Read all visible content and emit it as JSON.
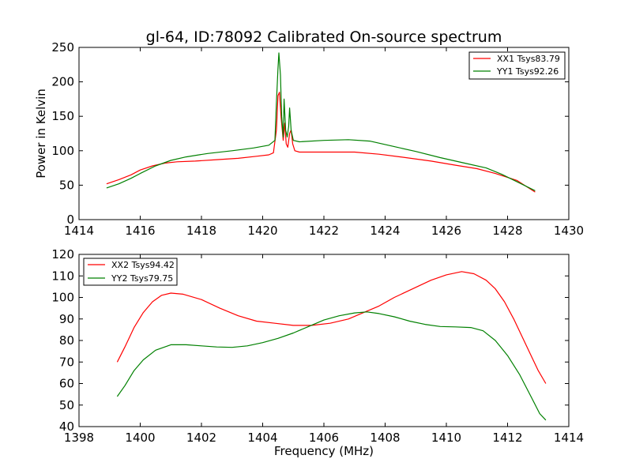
{
  "chart_data": [
    {
      "type": "line",
      "title": "gl-64, ID:78092 Calibrated On-source spectrum",
      "xlabel": "",
      "ylabel": "Power in Kelvin",
      "xlim": [
        1414,
        1430
      ],
      "ylim": [
        0,
        250
      ],
      "xticks": [
        "1414",
        "1416",
        "1418",
        "1420",
        "1422",
        "1424",
        "1426",
        "1428",
        "1430"
      ],
      "yticks": [
        "0",
        "50",
        "100",
        "150",
        "200",
        "250"
      ],
      "legend": "top-right",
      "grid": false,
      "series": [
        {
          "name": "XX1 Tsys83.79",
          "color": "#ff0000",
          "points": [
            [
              1414.9,
              52
            ],
            [
              1415.3,
              58
            ],
            [
              1415.7,
              65
            ],
            [
              1416.0,
              72
            ],
            [
              1416.4,
              78
            ],
            [
              1416.8,
              82
            ],
            [
              1417.2,
              84
            ],
            [
              1417.8,
              85
            ],
            [
              1418.5,
              87
            ],
            [
              1419.2,
              89
            ],
            [
              1419.8,
              92
            ],
            [
              1420.2,
              94
            ],
            [
              1420.35,
              97
            ],
            [
              1420.45,
              130
            ],
            [
              1420.5,
              180
            ],
            [
              1420.55,
              185
            ],
            [
              1420.6,
              150
            ],
            [
              1420.67,
              115
            ],
            [
              1420.72,
              140
            ],
            [
              1420.77,
              110
            ],
            [
              1420.82,
              105
            ],
            [
              1420.88,
              125
            ],
            [
              1420.93,
              130
            ],
            [
              1420.98,
              110
            ],
            [
              1421.05,
              100
            ],
            [
              1421.2,
              98
            ],
            [
              1422.0,
              98
            ],
            [
              1423.0,
              98
            ],
            [
              1423.8,
              95
            ],
            [
              1424.5,
              91
            ],
            [
              1425.5,
              85
            ],
            [
              1426.3,
              79
            ],
            [
              1427.0,
              74
            ],
            [
              1427.6,
              67
            ],
            [
              1428.3,
              57
            ],
            [
              1428.9,
              40
            ]
          ]
        },
        {
          "name": "YY1 Tsys92.26",
          "color": "#008000",
          "points": [
            [
              1414.9,
              46
            ],
            [
              1415.3,
              52
            ],
            [
              1415.7,
              60
            ],
            [
              1416.0,
              67
            ],
            [
              1416.5,
              78
            ],
            [
              1417.0,
              86
            ],
            [
              1417.5,
              91
            ],
            [
              1418.2,
              96
            ],
            [
              1419.0,
              100
            ],
            [
              1419.7,
              104
            ],
            [
              1420.2,
              108
            ],
            [
              1420.4,
              115
            ],
            [
              1420.45,
              170
            ],
            [
              1420.5,
              220
            ],
            [
              1420.53,
              242
            ],
            [
              1420.58,
              210
            ],
            [
              1420.62,
              150
            ],
            [
              1420.67,
              120
            ],
            [
              1420.7,
              175
            ],
            [
              1420.75,
              130
            ],
            [
              1420.8,
              120
            ],
            [
              1420.85,
              135
            ],
            [
              1420.88,
              162
            ],
            [
              1420.93,
              130
            ],
            [
              1421.0,
              115
            ],
            [
              1421.2,
              113
            ],
            [
              1422.0,
              115
            ],
            [
              1422.8,
              116
            ],
            [
              1423.5,
              114
            ],
            [
              1424.3,
              106
            ],
            [
              1425.0,
              99
            ],
            [
              1425.8,
              90
            ],
            [
              1426.6,
              82
            ],
            [
              1427.3,
              75
            ],
            [
              1427.8,
              66
            ],
            [
              1428.4,
              53
            ],
            [
              1428.9,
              42
            ]
          ]
        }
      ]
    },
    {
      "type": "line",
      "title": "",
      "xlabel": "Frequency (MHz)",
      "ylabel": "",
      "xlim": [
        1398,
        1414
      ],
      "ylim": [
        40,
        120
      ],
      "xticks": [
        "1398",
        "1400",
        "1402",
        "1404",
        "1406",
        "1408",
        "1410",
        "1412",
        "1414"
      ],
      "yticks": [
        "40",
        "50",
        "60",
        "70",
        "80",
        "90",
        "100",
        "110",
        "120"
      ],
      "legend": "top-left",
      "grid": false,
      "series": [
        {
          "name": "XX2 Tsys94.42",
          "color": "#ff0000",
          "points": [
            [
              1399.25,
              70
            ],
            [
              1399.5,
              77
            ],
            [
              1399.8,
              86
            ],
            [
              1400.1,
              93
            ],
            [
              1400.4,
              98
            ],
            [
              1400.7,
              101
            ],
            [
              1401.0,
              102
            ],
            [
              1401.4,
              101.5
            ],
            [
              1402.0,
              99
            ],
            [
              1402.6,
              95
            ],
            [
              1403.2,
              91.5
            ],
            [
              1403.8,
              89
            ],
            [
              1404.4,
              88
            ],
            [
              1405.0,
              87
            ],
            [
              1405.6,
              87
            ],
            [
              1406.2,
              88
            ],
            [
              1406.8,
              90
            ],
            [
              1407.3,
              93
            ],
            [
              1407.8,
              96
            ],
            [
              1408.3,
              100
            ],
            [
              1408.9,
              104
            ],
            [
              1409.5,
              108
            ],
            [
              1410.0,
              110.5
            ],
            [
              1410.5,
              112
            ],
            [
              1410.9,
              111
            ],
            [
              1411.3,
              108
            ],
            [
              1411.6,
              104
            ],
            [
              1411.9,
              98
            ],
            [
              1412.2,
              90
            ],
            [
              1412.5,
              81
            ],
            [
              1412.8,
              72
            ],
            [
              1413.0,
              66
            ],
            [
              1413.25,
              60
            ]
          ]
        },
        {
          "name": "YY2 Tsys79.75",
          "color": "#008000",
          "points": [
            [
              1399.25,
              54
            ],
            [
              1399.5,
              59
            ],
            [
              1399.8,
              66
            ],
            [
              1400.1,
              71
            ],
            [
              1400.5,
              75.5
            ],
            [
              1401.0,
              78
            ],
            [
              1401.5,
              78
            ],
            [
              1402.0,
              77.5
            ],
            [
              1402.5,
              77
            ],
            [
              1403.0,
              76.8
            ],
            [
              1403.5,
              77.5
            ],
            [
              1404.0,
              79
            ],
            [
              1404.5,
              81
            ],
            [
              1405.0,
              83.5
            ],
            [
              1405.5,
              86.5
            ],
            [
              1406.0,
              89.5
            ],
            [
              1406.5,
              91.5
            ],
            [
              1407.0,
              92.8
            ],
            [
              1407.4,
              93.3
            ],
            [
              1407.8,
              92.5
            ],
            [
              1408.3,
              91
            ],
            [
              1408.8,
              89
            ],
            [
              1409.3,
              87.5
            ],
            [
              1409.8,
              86.5
            ],
            [
              1410.3,
              86.3
            ],
            [
              1410.8,
              86
            ],
            [
              1411.2,
              84.5
            ],
            [
              1411.6,
              80
            ],
            [
              1412.0,
              73
            ],
            [
              1412.4,
              64
            ],
            [
              1412.8,
              53
            ],
            [
              1413.05,
              46
            ],
            [
              1413.25,
              43
            ]
          ]
        }
      ]
    }
  ]
}
